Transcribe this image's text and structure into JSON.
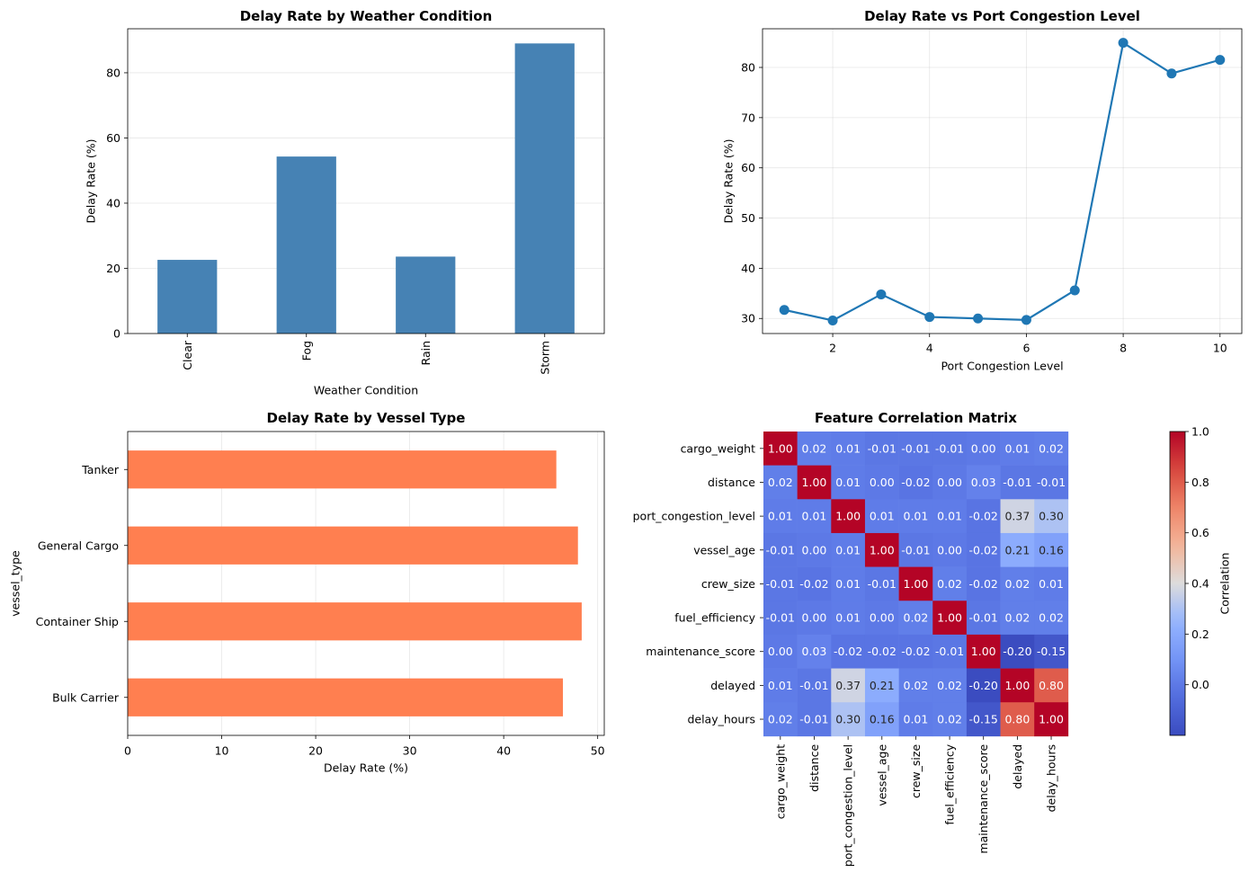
{
  "chart_data": [
    {
      "type": "bar",
      "title": "Delay Rate by Weather Condition",
      "xlabel": "Weather Condition",
      "ylabel": "Delay Rate (%)",
      "categories": [
        "Clear",
        "Fog",
        "Rain",
        "Storm"
      ],
      "values": [
        22.6,
        54.3,
        23.6,
        89.0
      ],
      "ylim": [
        0,
        93.5
      ],
      "yticks": [
        0,
        20,
        40,
        60,
        80
      ],
      "orientation": "vertical",
      "grid": true,
      "color": "#4682b4"
    },
    {
      "type": "line",
      "title": "Delay Rate vs Port Congestion Level",
      "xlabel": "Port Congestion Level",
      "ylabel": "Delay Rate (%)",
      "x": [
        1,
        2,
        3,
        4,
        5,
        6,
        7,
        8,
        9,
        10
      ],
      "y": [
        31.7,
        29.6,
        34.8,
        30.3,
        30.0,
        29.7,
        35.6,
        84.9,
        78.8,
        81.5
      ],
      "xlim": [
        0.55,
        10.45
      ],
      "ylim": [
        27.0,
        87.7
      ],
      "xticks": [
        2,
        4,
        6,
        8,
        10
      ],
      "yticks": [
        30,
        40,
        50,
        60,
        70,
        80
      ],
      "grid": true,
      "color": "#1f77b4"
    },
    {
      "type": "bar",
      "title": "Delay Rate by Vessel Type",
      "xlabel": "Delay Rate (%)",
      "ylabel": "vessel_type",
      "categories": [
        "Bulk Carrier",
        "Container Ship",
        "General Cargo",
        "Tanker"
      ],
      "values": [
        46.3,
        48.3,
        47.9,
        45.6
      ],
      "xlim": [
        0,
        50.7
      ],
      "xticks": [
        0,
        10,
        20,
        30,
        40,
        50
      ],
      "orientation": "horizontal",
      "grid": true,
      "color": "#ff7f50"
    },
    {
      "type": "heatmap",
      "title": "Feature Correlation Matrix",
      "colorbar_label": "Correlation",
      "labels": [
        "cargo_weight",
        "distance",
        "port_congestion_level",
        "vessel_age",
        "crew_size",
        "fuel_efficiency",
        "maintenance_score",
        "delayed",
        "delay_hours"
      ],
      "matrix": [
        [
          1.0,
          0.02,
          0.01,
          -0.01,
          -0.01,
          -0.01,
          0.0,
          0.01,
          0.02
        ],
        [
          0.02,
          1.0,
          0.01,
          0.0,
          -0.02,
          0.0,
          0.03,
          -0.01,
          -0.01
        ],
        [
          0.01,
          0.01,
          1.0,
          0.01,
          0.01,
          0.01,
          -0.02,
          0.37,
          0.3
        ],
        [
          -0.01,
          0.0,
          0.01,
          1.0,
          -0.01,
          0.0,
          -0.02,
          0.21,
          0.16
        ],
        [
          -0.01,
          -0.02,
          0.01,
          -0.01,
          1.0,
          0.02,
          -0.02,
          0.02,
          0.01
        ],
        [
          -0.01,
          0.0,
          0.01,
          0.0,
          0.02,
          1.0,
          -0.01,
          0.02,
          0.02
        ],
        [
          0.0,
          0.03,
          -0.02,
          -0.02,
          -0.02,
          -0.01,
          1.0,
          -0.2,
          -0.15
        ],
        [
          0.01,
          -0.01,
          0.37,
          0.21,
          0.02,
          0.02,
          -0.2,
          1.0,
          0.8
        ],
        [
          0.02,
          -0.01,
          0.3,
          0.16,
          0.01,
          0.02,
          -0.15,
          0.8,
          1.0
        ]
      ],
      "vmin": -0.2,
      "vmax": 1.0,
      "colormap": "coolwarm",
      "colorbar_ticks": [
        1.0,
        0.8,
        0.6,
        0.4,
        0.2,
        0.0
      ],
      "colorbar_tick_labels": [
        "1.0",
        "0.8",
        "0.6",
        "0.4",
        "0.2",
        "0.0"
      ]
    }
  ]
}
